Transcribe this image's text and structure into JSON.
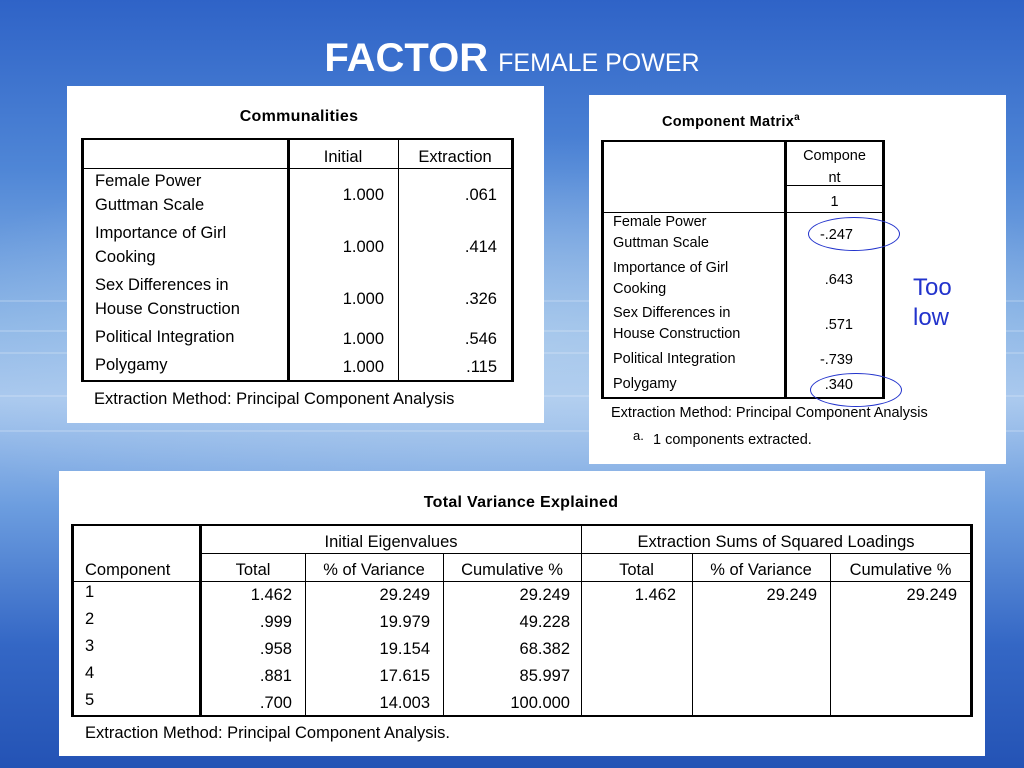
{
  "slide": {
    "title_bold": "FACTOR",
    "title_rest": "FEMALE POWER",
    "annotation": "Too low",
    "accent_color": "#2233cc"
  },
  "communalities": {
    "title": "Communalities",
    "headers": [
      "Initial",
      "Extraction"
    ],
    "rows": [
      {
        "label": [
          "Female Power",
          "Guttman Scale"
        ],
        "initial": "1.000",
        "extraction": ".061"
      },
      {
        "label": [
          "Importance of Girl",
          "Cooking"
        ],
        "initial": "1.000",
        "extraction": ".414"
      },
      {
        "label": [
          "Sex Differences in",
          "House Construction"
        ],
        "initial": "1.000",
        "extraction": ".326"
      },
      {
        "label": [
          "Political Integration"
        ],
        "initial": "1.000",
        "extraction": ".546"
      },
      {
        "label": [
          "Polygamy"
        ],
        "initial": "1.000",
        "extraction": ".115"
      }
    ],
    "footnote": "Extraction Method: Principal Component Analysis"
  },
  "component_matrix": {
    "title": "Component Matrix",
    "superscript": "a",
    "header": [
      "Compone",
      "nt"
    ],
    "subheader": "1",
    "rows": [
      {
        "label": [
          "Female Power",
          "Guttman Scale"
        ],
        "value": "-.247"
      },
      {
        "label": [
          "Importance of Girl",
          "Cooking"
        ],
        "value": ".643"
      },
      {
        "label": [
          "Sex Differences in",
          "House Construction"
        ],
        "value": ".571"
      },
      {
        "label": [
          "Political Integration"
        ],
        "value": "-.739"
      },
      {
        "label": [
          "Polygamy"
        ],
        "value": ".340"
      }
    ],
    "footnote": "Extraction Method: Principal Component Analysis",
    "note_marker": "a.",
    "note_text": "1 components extracted."
  },
  "variance": {
    "title": "Total Variance Explained",
    "group_initial": "Initial Eigenvalues",
    "group_extraction": "Extraction Sums of Squared Loadings",
    "columns": [
      "Component",
      "Total",
      "% of Variance",
      "Cumulative %",
      "Total",
      "% of Variance",
      "Cumulative %"
    ],
    "rows": [
      [
        "1",
        "1.462",
        "29.249",
        "29.249",
        "1.462",
        "29.249",
        "29.249"
      ],
      [
        "2",
        ".999",
        "19.979",
        "49.228",
        "",
        "",
        ""
      ],
      [
        "3",
        ".958",
        "19.154",
        "68.382",
        "",
        "",
        ""
      ],
      [
        "4",
        ".881",
        "17.615",
        "85.997",
        "",
        "",
        ""
      ],
      [
        "5",
        ".700",
        "14.003",
        "100.000",
        "",
        "",
        ""
      ]
    ],
    "footnote": "Extraction Method: Principal Component Analysis."
  }
}
